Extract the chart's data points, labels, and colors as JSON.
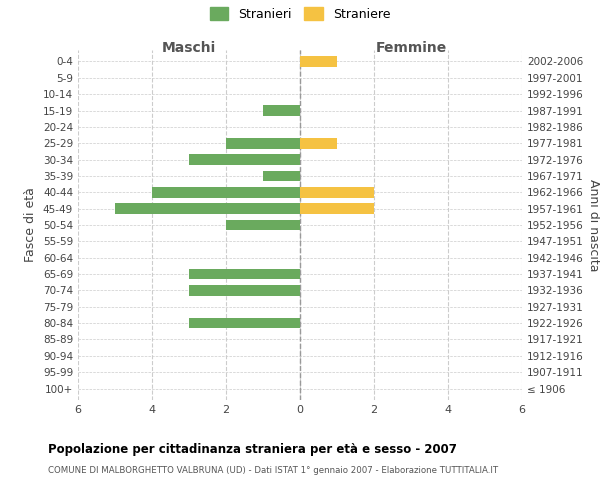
{
  "age_groups": [
    "100+",
    "95-99",
    "90-94",
    "85-89",
    "80-84",
    "75-79",
    "70-74",
    "65-69",
    "60-64",
    "55-59",
    "50-54",
    "45-49",
    "40-44",
    "35-39",
    "30-34",
    "25-29",
    "20-24",
    "15-19",
    "10-14",
    "5-9",
    "0-4"
  ],
  "birth_years": [
    "≤ 1906",
    "1907-1911",
    "1912-1916",
    "1917-1921",
    "1922-1926",
    "1927-1931",
    "1932-1936",
    "1937-1941",
    "1942-1946",
    "1947-1951",
    "1952-1956",
    "1957-1961",
    "1962-1966",
    "1967-1971",
    "1972-1976",
    "1977-1981",
    "1982-1986",
    "1987-1991",
    "1992-1996",
    "1997-2001",
    "2002-2006"
  ],
  "stranieri_maschi": [
    0,
    0,
    0,
    0,
    3,
    0,
    3,
    3,
    0,
    0,
    2,
    5,
    4,
    1,
    3,
    2,
    0,
    1,
    0,
    0,
    0
  ],
  "straniere_femmine": [
    0,
    0,
    0,
    0,
    0,
    0,
    0,
    0,
    0,
    0,
    0,
    2,
    2,
    0,
    0,
    1,
    0,
    0,
    0,
    0,
    1
  ],
  "color_stranieri": "#6aaa5e",
  "color_straniere": "#f5c242",
  "xlim": 6,
  "title": "Popolazione per cittadinanza straniera per età e sesso - 2007",
  "subtitle": "COMUNE DI MALBORGHETTO VALBRUNA (UD) - Dati ISTAT 1° gennaio 2007 - Elaborazione TUTTITALIA.IT",
  "left_header": "Maschi",
  "right_header": "Femmine",
  "ylabel": "Fasce di età",
  "ylabel_right": "Anni di nascita",
  "legend_stranieri": "Stranieri",
  "legend_straniere": "Straniere",
  "background_color": "#ffffff",
  "grid_color": "#cccccc"
}
